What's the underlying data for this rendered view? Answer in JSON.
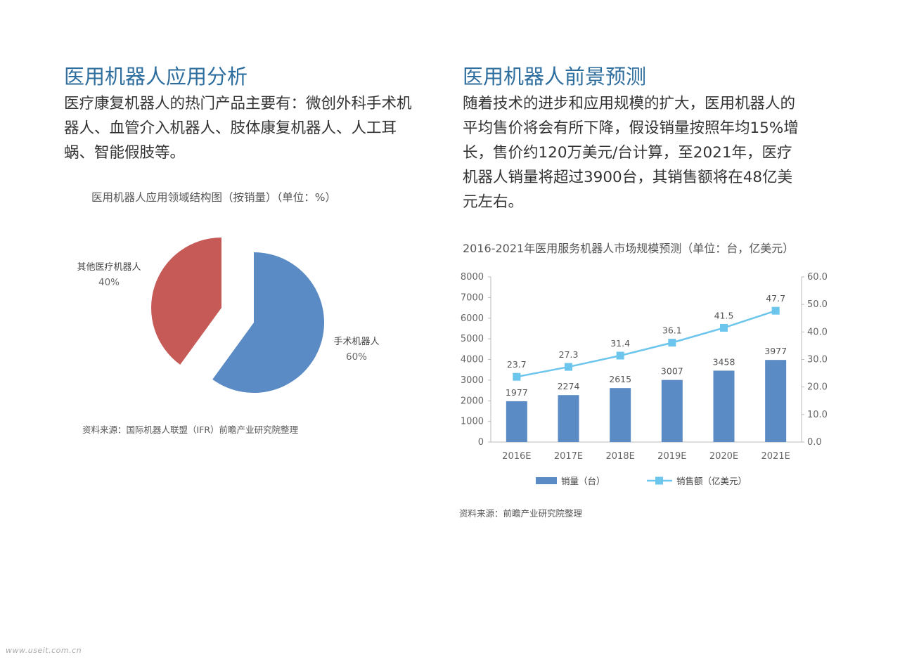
{
  "colors": {
    "heading": "#2e6e9e",
    "bar": "#5b8bc4",
    "line": "#6cc5ec",
    "pie_surgical": "#5b8bc4",
    "pie_other": "#c65a57"
  },
  "left": {
    "heading": "医用机器人应用分析",
    "lines": [
      "医疗康复机器人的热门产品主要有：微创外科手术机",
      "器人、血管介入机器人、肢体康复机器人、人工耳",
      "蜗、智能假肢等。"
    ],
    "source": "资料来源：国际机器人联盟（IFR）前瞻产业研究院整理"
  },
  "right": {
    "heading": "医用机器人前景预测",
    "lines": [
      "随着技术的进步和应用规模的扩大，医用机器人的",
      "平均售价将会有所下降，假设销量按照年均15%增",
      "长，售价约120万美元/台计算，至2021年，医疗",
      "机器人销量将超过3900台，其销售额将在48亿美",
      "元左右。"
    ],
    "source": "资料来源：前瞻产业研究院整理"
  },
  "watermark": "www.useit.com.cn",
  "chart_data": [
    {
      "type": "pie",
      "title": "医用机器人应用领域结构图（按销量）（单位：%）",
      "slices": [
        {
          "label": "手术机器人",
          "value": 60,
          "value_label": "60%",
          "color": "#5b8bc4"
        },
        {
          "label": "其他医疗机器人",
          "value": 40,
          "value_label": "40%",
          "color": "#c65a57"
        }
      ]
    },
    {
      "type": "bar",
      "title": "2016-2021年医用服务机器人市场规模预测（单位：台，亿美元）",
      "categories": [
        "2016E",
        "2017E",
        "2018E",
        "2019E",
        "2020E",
        "2021E"
      ],
      "ylim": [
        0,
        8000
      ],
      "yticks": [
        0,
        1000,
        2000,
        3000,
        4000,
        5000,
        6000,
        7000,
        8000
      ],
      "y2lim": [
        0,
        60
      ],
      "y2ticks": [
        "0.0",
        "10.0",
        "20.0",
        "30.0",
        "40.0",
        "50.0",
        "60.0"
      ],
      "grid": false,
      "legend_position": "bottom",
      "series": [
        {
          "name": "销量（台）",
          "type": "bar",
          "axis": "left",
          "values": [
            1977,
            2274,
            2615,
            3007,
            3458,
            3977
          ]
        },
        {
          "name": "销售额（亿美元）",
          "type": "line",
          "axis": "right",
          "values": [
            23.7,
            27.3,
            31.4,
            36.1,
            41.5,
            47.7
          ]
        }
      ]
    }
  ]
}
